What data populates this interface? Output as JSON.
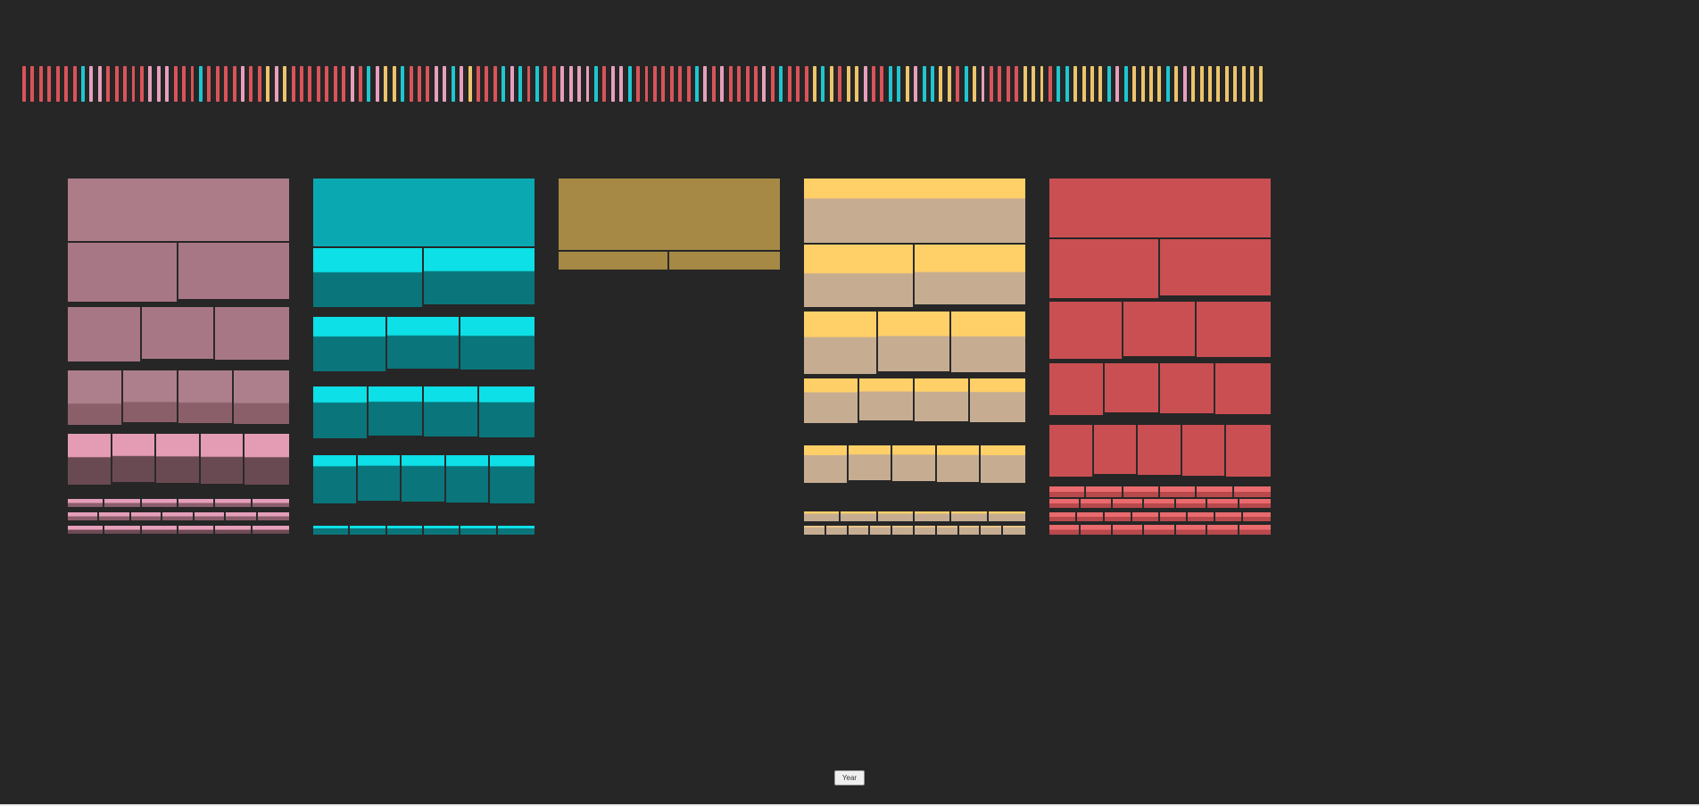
{
  "colors": {
    "background": "#262626",
    "palette": {
      "r": "#d9545a",
      "p": "#e6a0bb",
      "c": "#1fc6d0",
      "y": "#ecc46c",
      "m": "#c07d93",
      "t": "#2aa6ae"
    }
  },
  "strip": {
    "sequence": "rrrrrrrcpprrrrrppprrrcrrrrprrypyrrrrrrrprcpyycrrrppcpyrrrcpcrcrrppppcrppcrrrrrrrcprprrrrprcrrrycyryyprrccypccyyrcyprrrryyyrccyyyycpcyyyycypyyyyyyyyy"
  },
  "year_button": {
    "label": "Year"
  },
  "columns": [
    {
      "id": "pink",
      "rows": [
        {
          "n": 1,
          "top": "#ac7c89",
          "bottom": "#ac7c89",
          "split": 1.0
        },
        {
          "n": 2,
          "top": "#a87785",
          "bottom": "#a87785",
          "split": 1.0
        },
        {
          "n": 3,
          "top": "#a87785",
          "bottom": "#a87785",
          "split": 1.0
        },
        {
          "n": 4,
          "top": "#ad7f8c",
          "bottom": "#8a5f6a",
          "split": 0.6
        },
        {
          "n": 5,
          "top": "#e49cb5",
          "bottom": "#6a4a52",
          "split": 0.45
        },
        {
          "n": 6,
          "top": "#e69fba",
          "bottom": "#8c5d6b",
          "split": 0.5
        },
        {
          "n": 7,
          "top": "#e69fba",
          "bottom": "#8c5d6b",
          "split": 0.5
        },
        {
          "n": 6,
          "top": "#e69fba",
          "bottom": "#6e4a55",
          "split": 0.5
        }
      ]
    },
    {
      "id": "teal",
      "rows": [
        {
          "n": 1,
          "top": "#0aa9b2",
          "bottom": "#0aa9b2",
          "split": 1.0
        },
        {
          "n": 2,
          "top": "#0de0e6",
          "bottom": "#0a757b",
          "split": 0.4
        },
        {
          "n": 3,
          "top": "#0de0e6",
          "bottom": "#0a757b",
          "split": 0.35
        },
        {
          "n": 4,
          "top": "#0de0e6",
          "bottom": "#0a757b",
          "split": 0.3
        },
        {
          "n": 5,
          "top": "#0de0e6",
          "bottom": "#0a757b",
          "split": 0.22
        },
        {
          "n": 6,
          "top": "#0de0e6",
          "bottom": "#0a757b",
          "split": 0.3
        }
      ]
    },
    {
      "id": "olive",
      "rows": [
        {
          "n": 1,
          "top": "#a58945",
          "bottom": "#a58945",
          "split": 1.0
        },
        {
          "n": 2,
          "top": "#a58945",
          "bottom": "#a58945",
          "split": 1.0
        }
      ]
    },
    {
      "id": "gold",
      "rows": [
        {
          "n": 1,
          "top": "#ffd067",
          "bottom": "#c6ad92",
          "split": 0.3
        },
        {
          "n": 2,
          "top": "#ffd067",
          "bottom": "#c6ad92",
          "split": 0.45
        },
        {
          "n": 3,
          "top": "#ffd067",
          "bottom": "#c6ad92",
          "split": 0.4
        },
        {
          "n": 4,
          "top": "#ffd067",
          "bottom": "#c6ad92",
          "split": 0.3
        },
        {
          "n": 5,
          "top": "#ffd067",
          "bottom": "#c6ad92",
          "split": 0.25
        },
        {
          "n": 6,
          "top": "#ffd067",
          "bottom": "#c6ad92",
          "split": 0.2
        },
        {
          "n": 10,
          "top": "#e9c487",
          "bottom": "#c6ad92",
          "split": 0.2
        }
      ]
    },
    {
      "id": "red",
      "rows": [
        {
          "n": 1,
          "top": "#ca4f52",
          "bottom": "#ca4f52",
          "split": 1.0
        },
        {
          "n": 2,
          "top": "#ca4f52",
          "bottom": "#ca4f52",
          "split": 1.0
        },
        {
          "n": 3,
          "top": "#ca4f52",
          "bottom": "#ca4f52",
          "split": 1.0
        },
        {
          "n": 4,
          "top": "#ca4f52",
          "bottom": "#ca4f52",
          "split": 1.0
        },
        {
          "n": 5,
          "top": "#ca4f52",
          "bottom": "#ca4f52",
          "split": 1.0
        },
        {
          "n": 6,
          "top": "#ea6a6d",
          "bottom": "#b8494c",
          "split": 0.5
        },
        {
          "n": 7,
          "top": "#ea6a6d",
          "bottom": "#b8494c",
          "split": 0.5
        },
        {
          "n": 8,
          "top": "#ea6a6d",
          "bottom": "#b8494c",
          "split": 0.5
        },
        {
          "n": 7,
          "top": "#ea6a6d",
          "bottom": "#b8494c",
          "split": 0.5
        }
      ]
    }
  ]
}
